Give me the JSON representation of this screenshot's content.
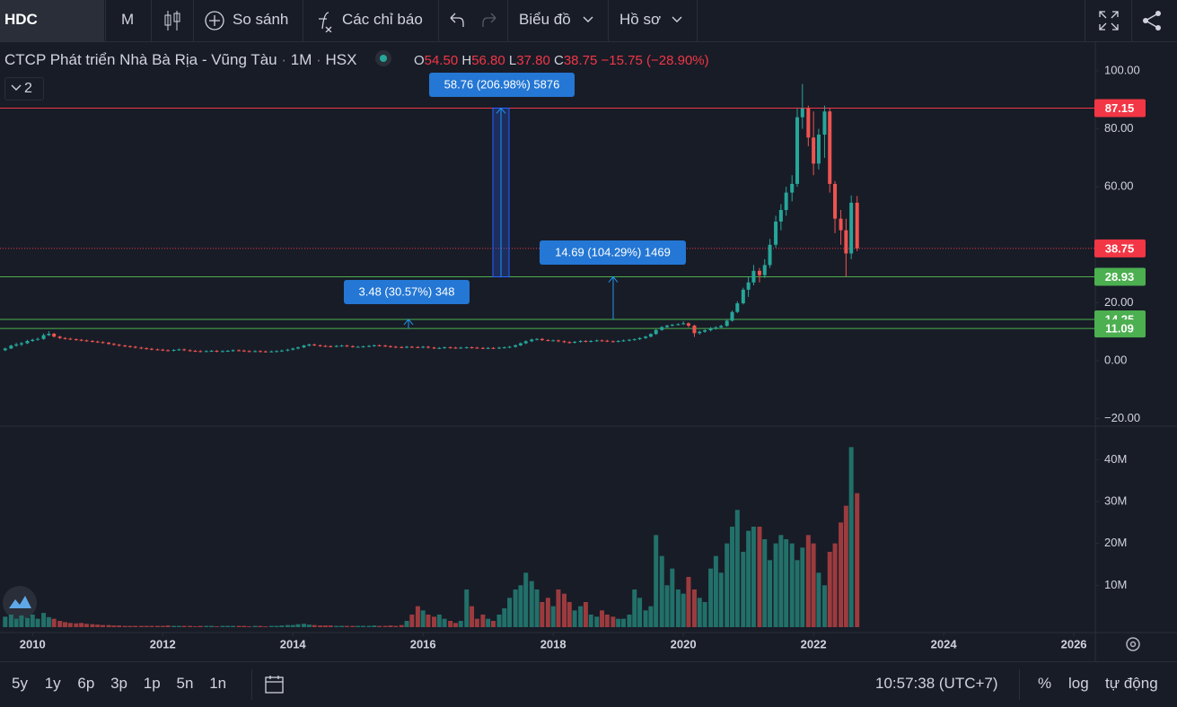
{
  "toolbar": {
    "symbol": "HDC",
    "interval": "M",
    "compare": "So sánh",
    "indicators": "Các chỉ báo",
    "chart": "Biểu đồ",
    "profile": "Hồ sơ"
  },
  "legend": {
    "name": "CTCP Phát triển Nhà Bà Rịa - Vũng Tàu",
    "interval": "1M",
    "exchange": "HSX",
    "o_label": "O",
    "o": "54.50",
    "h_label": "H",
    "h": "56.80",
    "l_label": "L",
    "l": "37.80",
    "c_label": "C",
    "c": "38.75",
    "change": "−15.75 (−28.90%)",
    "indicator_count": "2"
  },
  "chart_data": {
    "type": "candlestick",
    "up_color": "#26a69a",
    "down_color": "#ef5350",
    "volume_up_color": "#22706a",
    "volume_down_color": "#9c3b3e",
    "grid": false,
    "xlim": [
      2009.5,
      2026.33
    ],
    "xticks": [
      2010,
      2012,
      2014,
      2016,
      2018,
      2020,
      2022,
      2024,
      2026
    ],
    "ylim": [
      -22.6,
      109.9
    ],
    "yticks": [
      {
        "value": 100,
        "label": "100.00"
      },
      {
        "value": 80,
        "label": "80.00"
      },
      {
        "value": 60,
        "label": "60.00"
      },
      {
        "value": 20,
        "label": "20.00"
      },
      {
        "value": 0,
        "label": "0.00"
      },
      {
        "value": -20,
        "label": "−20.00"
      }
    ],
    "volume_ylim": [
      0,
      48000000
    ],
    "volume_yticks": [
      {
        "value": 10000000,
        "label": "10M"
      },
      {
        "value": 20000000,
        "label": "20M"
      },
      {
        "value": 30000000,
        "label": "30M"
      },
      {
        "value": 40000000,
        "label": "40M"
      }
    ],
    "price_lines": [
      {
        "value": 87.15,
        "color": "#f23645",
        "style": "solid"
      },
      {
        "value": 38.75,
        "color": "#f23645",
        "style": "dotted"
      },
      {
        "value": 28.93,
        "color": "#4caf50",
        "style": "solid"
      },
      {
        "value": 14.25,
        "color": "#4caf50",
        "style": "solid"
      },
      {
        "value": 11.09,
        "color": "#4caf50",
        "style": "solid"
      }
    ],
    "measures": [
      {
        "label": "58.76 (206.98%) 5876"
      },
      {
        "label": "14.69 (104.29%) 1469"
      },
      {
        "label": "3.48 (30.57%) 348"
      }
    ],
    "x": [
      2009.58,
      2009.67,
      2009.75,
      2009.83,
      2009.92,
      2010.0,
      2010.08,
      2010.17,
      2010.25,
      2010.33,
      2010.42,
      2010.5,
      2010.58,
      2010.67,
      2010.75,
      2010.83,
      2010.92,
      2011.0,
      2011.08,
      2011.17,
      2011.25,
      2011.33,
      2011.42,
      2011.5,
      2011.58,
      2011.67,
      2011.75,
      2011.83,
      2011.92,
      2012.0,
      2012.08,
      2012.17,
      2012.25,
      2012.33,
      2012.42,
      2012.5,
      2012.58,
      2012.67,
      2012.75,
      2012.83,
      2012.92,
      2013.0,
      2013.08,
      2013.17,
      2013.25,
      2013.33,
      2013.42,
      2013.5,
      2013.58,
      2013.67,
      2013.75,
      2013.83,
      2013.92,
      2014.0,
      2014.08,
      2014.17,
      2014.25,
      2014.33,
      2014.42,
      2014.5,
      2014.58,
      2014.67,
      2014.75,
      2014.83,
      2014.92,
      2015.0,
      2015.08,
      2015.17,
      2015.25,
      2015.33,
      2015.42,
      2015.5,
      2015.58,
      2015.67,
      2015.75,
      2015.83,
      2015.92,
      2016.0,
      2016.08,
      2016.17,
      2016.25,
      2016.33,
      2016.42,
      2016.5,
      2016.58,
      2016.67,
      2016.75,
      2016.83,
      2016.92,
      2017.0,
      2017.08,
      2017.17,
      2017.25,
      2017.33,
      2017.42,
      2017.5,
      2017.58,
      2017.67,
      2017.75,
      2017.83,
      2017.92,
      2018.0,
      2018.08,
      2018.17,
      2018.25,
      2018.33,
      2018.42,
      2018.5,
      2018.58,
      2018.67,
      2018.75,
      2018.83,
      2018.92,
      2019.0,
      2019.08,
      2019.17,
      2019.25,
      2019.33,
      2019.42,
      2019.5,
      2019.58,
      2019.67,
      2019.75,
      2019.83,
      2019.92,
      2020.0,
      2020.08,
      2020.17,
      2020.25,
      2020.33,
      2020.42,
      2020.5,
      2020.58,
      2020.67,
      2020.75,
      2020.83,
      2020.92,
      2021.0,
      2021.08,
      2021.17,
      2021.25,
      2021.33,
      2021.42,
      2021.5,
      2021.58,
      2021.67,
      2021.75,
      2021.83,
      2021.92,
      2022.0,
      2022.08,
      2022.17,
      2022.25,
      2022.33,
      2022.42,
      2022.5,
      2022.58,
      2022.67
    ],
    "ohlc": [
      [
        3.6,
        4.5,
        3.3,
        4.2
      ],
      [
        4.2,
        5.5,
        4.0,
        5.2
      ],
      [
        5.2,
        6.2,
        4.8,
        5.6
      ],
      [
        5.6,
        6.5,
        5.0,
        6.0
      ],
      [
        6.0,
        7.2,
        5.7,
        6.8
      ],
      [
        6.8,
        7.6,
        6.5,
        7.2
      ],
      [
        7.2,
        8.0,
        6.9,
        7.5
      ],
      [
        7.5,
        9.4,
        7.2,
        8.8
      ],
      [
        8.8,
        10.2,
        8.5,
        9.3
      ],
      [
        9.3,
        9.6,
        8.0,
        8.3
      ],
      [
        8.3,
        8.6,
        7.5,
        7.8
      ],
      [
        7.8,
        8.1,
        7.3,
        7.6
      ],
      [
        7.6,
        7.9,
        7.1,
        7.4
      ],
      [
        7.4,
        7.7,
        6.9,
        7.2
      ],
      [
        7.2,
        7.5,
        6.7,
        7.0
      ],
      [
        7.0,
        7.3,
        6.5,
        6.8
      ],
      [
        6.8,
        7.1,
        6.3,
        6.6
      ],
      [
        6.6,
        6.9,
        6.1,
        6.4
      ],
      [
        6.4,
        6.7,
        5.9,
        6.2
      ],
      [
        6.2,
        6.5,
        5.5,
        5.8
      ],
      [
        5.8,
        6.1,
        5.2,
        5.5
      ],
      [
        5.5,
        5.8,
        4.9,
        5.2
      ],
      [
        5.2,
        5.5,
        4.7,
        5.0
      ],
      [
        5.0,
        5.3,
        4.5,
        4.8
      ],
      [
        4.8,
        5.1,
        4.2,
        4.5
      ],
      [
        4.5,
        4.8,
        4.0,
        4.3
      ],
      [
        4.3,
        4.6,
        3.8,
        4.1
      ],
      [
        4.1,
        4.4,
        3.6,
        3.9
      ],
      [
        3.9,
        4.2,
        3.5,
        3.8
      ],
      [
        3.8,
        4.1,
        3.3,
        3.6
      ],
      [
        3.6,
        3.9,
        3.2,
        3.5
      ],
      [
        3.5,
        4.0,
        3.2,
        3.7
      ],
      [
        3.7,
        4.2,
        3.4,
        3.9
      ],
      [
        3.9,
        4.2,
        3.3,
        3.6
      ],
      [
        3.6,
        3.9,
        3.1,
        3.4
      ],
      [
        3.4,
        3.7,
        3.0,
        3.3
      ],
      [
        3.3,
        3.6,
        2.9,
        3.2
      ],
      [
        3.2,
        3.6,
        2.9,
        3.3
      ],
      [
        3.3,
        3.7,
        3.0,
        3.4
      ],
      [
        3.4,
        3.7,
        2.9,
        3.2
      ],
      [
        3.2,
        3.6,
        2.9,
        3.3
      ],
      [
        3.3,
        3.7,
        3.0,
        3.4
      ],
      [
        3.4,
        3.9,
        3.1,
        3.6
      ],
      [
        3.6,
        3.9,
        3.2,
        3.5
      ],
      [
        3.5,
        3.8,
        3.0,
        3.3
      ],
      [
        3.3,
        3.6,
        2.9,
        3.2
      ],
      [
        3.2,
        3.6,
        2.9,
        3.3
      ],
      [
        3.3,
        3.6,
        2.9,
        3.2
      ],
      [
        3.2,
        3.5,
        2.8,
        3.1
      ],
      [
        3.1,
        3.5,
        2.8,
        3.2
      ],
      [
        3.2,
        3.6,
        2.9,
        3.3
      ],
      [
        3.3,
        3.8,
        3.0,
        3.5
      ],
      [
        3.5,
        4.1,
        3.2,
        3.8
      ],
      [
        3.8,
        4.5,
        3.5,
        4.2
      ],
      [
        4.2,
        4.9,
        3.9,
        4.6
      ],
      [
        4.6,
        5.5,
        4.3,
        5.2
      ],
      [
        5.2,
        5.9,
        4.9,
        5.6
      ],
      [
        5.6,
        5.9,
        5.0,
        5.3
      ],
      [
        5.3,
        5.6,
        4.8,
        5.1
      ],
      [
        5.1,
        5.4,
        4.7,
        5.0
      ],
      [
        5.0,
        5.3,
        4.6,
        4.9
      ],
      [
        4.9,
        5.4,
        4.6,
        5.1
      ],
      [
        5.1,
        5.5,
        4.8,
        5.2
      ],
      [
        5.2,
        5.5,
        4.7,
        5.0
      ],
      [
        5.0,
        5.3,
        4.5,
        4.8
      ],
      [
        4.8,
        5.1,
        4.5,
        4.8
      ],
      [
        4.8,
        5.2,
        4.5,
        4.9
      ],
      [
        4.9,
        5.4,
        4.6,
        5.1
      ],
      [
        5.1,
        5.6,
        4.8,
        5.3
      ],
      [
        5.3,
        5.6,
        4.9,
        5.2
      ],
      [
        5.2,
        5.5,
        4.7,
        5.0
      ],
      [
        5.0,
        5.3,
        4.5,
        4.8
      ],
      [
        4.8,
        5.1,
        4.4,
        4.7
      ],
      [
        4.7,
        5.0,
        4.3,
        4.6
      ],
      [
        4.6,
        5.1,
        4.3,
        4.8
      ],
      [
        4.8,
        5.1,
        4.4,
        4.7
      ],
      [
        4.7,
        5.0,
        4.3,
        4.6
      ],
      [
        4.6,
        5.1,
        4.3,
        4.8
      ],
      [
        4.8,
        5.1,
        4.2,
        4.5
      ],
      [
        4.5,
        4.8,
        4.0,
        4.3
      ],
      [
        4.3,
        4.7,
        4.0,
        4.4
      ],
      [
        4.4,
        4.9,
        4.1,
        4.6
      ],
      [
        4.6,
        4.9,
        4.2,
        4.5
      ],
      [
        4.5,
        4.8,
        4.1,
        4.4
      ],
      [
        4.4,
        4.8,
        4.1,
        4.5
      ],
      [
        4.5,
        4.9,
        4.2,
        4.6
      ],
      [
        4.6,
        4.9,
        4.2,
        4.5
      ],
      [
        4.5,
        4.8,
        4.1,
        4.4
      ],
      [
        4.4,
        4.7,
        4.0,
        4.3
      ],
      [
        4.3,
        4.7,
        4.0,
        4.4
      ],
      [
        4.4,
        4.7,
        4.0,
        4.3
      ],
      [
        4.3,
        4.8,
        4.0,
        4.5
      ],
      [
        4.5,
        4.9,
        4.2,
        4.6
      ],
      [
        4.6,
        5.1,
        4.3,
        4.8
      ],
      [
        4.8,
        5.6,
        4.5,
        5.3
      ],
      [
        5.3,
        6.3,
        5.0,
        6.0
      ],
      [
        6.0,
        7.0,
        5.7,
        6.7
      ],
      [
        6.7,
        7.6,
        6.4,
        7.3
      ],
      [
        7.3,
        7.8,
        7.0,
        7.5
      ],
      [
        7.5,
        7.8,
        6.8,
        7.1
      ],
      [
        7.1,
        7.4,
        6.7,
        7.0
      ],
      [
        7.0,
        7.3,
        6.7,
        7.0
      ],
      [
        7.0,
        7.3,
        6.4,
        6.7
      ],
      [
        6.7,
        7.0,
        6.1,
        6.4
      ],
      [
        6.4,
        6.7,
        5.9,
        6.2
      ],
      [
        6.2,
        6.8,
        5.9,
        6.5
      ],
      [
        6.5,
        7.1,
        6.2,
        6.8
      ],
      [
        6.8,
        7.1,
        6.3,
        6.6
      ],
      [
        6.6,
        7.1,
        6.3,
        6.8
      ],
      [
        6.8,
        7.3,
        6.5,
        7.0
      ],
      [
        7.0,
        7.3,
        6.6,
        6.9
      ],
      [
        6.9,
        7.2,
        6.4,
        6.7
      ],
      [
        6.7,
        7.0,
        6.3,
        6.6
      ],
      [
        6.6,
        7.1,
        6.3,
        6.8
      ],
      [
        6.8,
        7.3,
        6.5,
        7.0
      ],
      [
        7.0,
        7.5,
        6.7,
        7.2
      ],
      [
        7.2,
        7.7,
        6.9,
        7.4
      ],
      [
        7.4,
        8.1,
        7.1,
        7.8
      ],
      [
        7.8,
        8.6,
        7.5,
        8.3
      ],
      [
        8.3,
        9.5,
        8.0,
        9.2
      ],
      [
        9.2,
        10.9,
        8.9,
        10.6
      ],
      [
        10.6,
        11.9,
        10.3,
        11.6
      ],
      [
        11.6,
        12.4,
        11.3,
        12.1
      ],
      [
        12.1,
        12.7,
        11.8,
        12.4
      ],
      [
        12.4,
        12.9,
        12.1,
        12.6
      ],
      [
        12.6,
        13.6,
        12.3,
        12.9
      ],
      [
        12.9,
        13.2,
        11.5,
        12.1
      ],
      [
        12.1,
        12.4,
        8.2,
        9.5
      ],
      [
        9.5,
        10.4,
        9.0,
        10.0
      ],
      [
        10.0,
        10.9,
        9.6,
        10.5
      ],
      [
        10.5,
        11.6,
        10.1,
        11.2
      ],
      [
        11.2,
        11.9,
        10.7,
        11.5
      ],
      [
        11.5,
        12.4,
        11.1,
        12.0
      ],
      [
        12.0,
        14.3,
        11.7,
        13.8
      ],
      [
        13.8,
        17.3,
        13.5,
        16.8
      ],
      [
        16.8,
        20.5,
        16.4,
        19.8
      ],
      [
        19.8,
        25.2,
        19.4,
        24.5
      ],
      [
        24.5,
        29,
        22,
        27
      ],
      [
        27,
        33,
        26,
        31
      ],
      [
        31,
        32,
        27,
        29.5
      ],
      [
        29.5,
        35,
        28.5,
        33
      ],
      [
        33,
        42,
        32,
        40
      ],
      [
        40,
        50,
        39,
        48
      ],
      [
        48,
        54,
        45,
        52
      ],
      [
        52,
        60,
        50,
        58
      ],
      [
        58,
        64,
        55,
        61
      ],
      [
        61,
        87,
        60,
        84
      ],
      [
        84,
        95.5,
        80,
        87
      ],
      [
        87,
        88,
        74,
        77
      ],
      [
        77,
        86,
        64,
        68
      ],
      [
        68,
        80,
        66,
        78
      ],
      [
        78,
        88,
        70,
        86
      ],
      [
        86,
        87,
        58,
        61
      ],
      [
        61,
        62,
        44,
        49
      ],
      [
        49,
        52,
        40,
        45
      ],
      [
        45,
        49,
        29,
        37
      ],
      [
        37,
        57,
        35,
        54.5
      ],
      [
        54.5,
        56.8,
        37.8,
        38.75
      ]
    ],
    "volume": [
      2500000,
      3000000,
      2000000,
      2800000,
      2200000,
      3000000,
      2000000,
      3400000,
      2400000,
      2000000,
      1500000,
      1200000,
      1000000,
      900000,
      1000000,
      800000,
      700000,
      600000,
      500000,
      500000,
      400000,
      400000,
      300000,
      300000,
      300000,
      300000,
      300000,
      300000,
      300000,
      300000,
      400000,
      300000,
      300000,
      300000,
      300000,
      200000,
      300000,
      300000,
      300000,
      200000,
      300000,
      300000,
      300000,
      300000,
      300000,
      200000,
      300000,
      300000,
      200000,
      300000,
      300000,
      400000,
      500000,
      500000,
      700000,
      800000,
      600000,
      500000,
      400000,
      400000,
      400000,
      300000,
      300000,
      300000,
      300000,
      300000,
      300000,
      300000,
      400000,
      300000,
      300000,
      400000,
      300000,
      500000,
      1500000,
      3000000,
      5000000,
      4000000,
      3000000,
      2500000,
      3000000,
      2000000,
      1500000,
      1000000,
      1500000,
      9000000,
      5000000,
      2000000,
      3000000,
      2000000,
      1500000,
      3000000,
      4500000,
      7000000,
      9000000,
      10000000,
      13000000,
      11000000,
      9000000,
      6000000,
      7000000,
      5000000,
      9000000,
      8000000,
      6000000,
      4000000,
      5000000,
      6000000,
      3000000,
      2500000,
      4000000,
      3000000,
      2500000,
      2000000,
      2000000,
      3000000,
      9000000,
      7000000,
      4000000,
      5000000,
      22000000,
      17000000,
      10000000,
      14000000,
      9000000,
      8000000,
      12000000,
      9000000,
      7000000,
      6000000,
      14000000,
      17000000,
      13000000,
      20000000,
      24000000,
      28000000,
      18000000,
      23000000,
      24000000,
      24000000,
      21000000,
      16000000,
      20000000,
      22000000,
      21000000,
      20000000,
      16000000,
      19000000,
      22000000,
      20000000,
      13000000,
      10000000,
      18000000,
      20000000,
      25000000,
      29000000,
      43000000,
      32000000
    ]
  },
  "bottom_bar": {
    "ranges": [
      "5y",
      "1y",
      "6p",
      "3p",
      "1p",
      "5n",
      "1n"
    ],
    "time": "10:57:38 (UTC+7)",
    "percent": "%",
    "log": "log",
    "auto": "tự động"
  }
}
